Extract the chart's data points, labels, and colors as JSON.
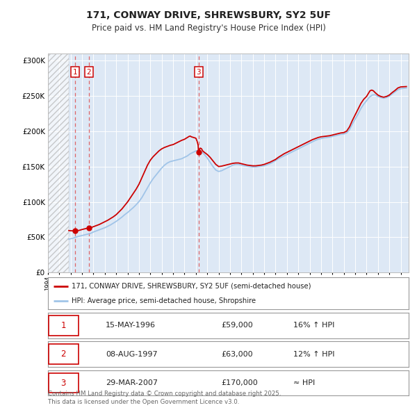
{
  "title": "171, CONWAY DRIVE, SHREWSBURY, SY2 5UF",
  "subtitle": "Price paid vs. HM Land Registry's House Price Index (HPI)",
  "legend_entry1": "171, CONWAY DRIVE, SHREWSBURY, SY2 5UF (semi-detached house)",
  "legend_entry2": "HPI: Average price, semi-detached house, Shropshire",
  "footer": "Contains HM Land Registry data © Crown copyright and database right 2025.\nThis data is licensed under the Open Government Licence v3.0.",
  "sale_color": "#cc0000",
  "hpi_color": "#a0c4e8",
  "bg_color": "#ffffff",
  "plot_bg_color": "#dde8f5",
  "ylim": [
    0,
    310000
  ],
  "xlim_start": 1994.0,
  "xlim_end": 2025.7,
  "hatch_end": 1995.83,
  "sales": [
    {
      "num": 1,
      "date_dec": 1996.37,
      "price": 59000,
      "label": "15-MAY-1996",
      "pct": "16% ↑ HPI"
    },
    {
      "num": 2,
      "date_dec": 1997.6,
      "price": 63000,
      "label": "08-AUG-1997",
      "pct": "12% ↑ HPI"
    },
    {
      "num": 3,
      "date_dec": 2007.24,
      "price": 170000,
      "label": "29-MAR-2007",
      "pct": "≈ HPI"
    }
  ],
  "hpi_data": [
    [
      1995.83,
      47200
    ],
    [
      1996.0,
      48000
    ],
    [
      1996.25,
      49000
    ],
    [
      1996.5,
      50500
    ],
    [
      1996.75,
      51500
    ],
    [
      1997.0,
      52500
    ],
    [
      1997.25,
      53500
    ],
    [
      1997.5,
      54500
    ],
    [
      1997.75,
      55500
    ],
    [
      1998.0,
      57500
    ],
    [
      1998.25,
      59000
    ],
    [
      1998.5,
      60500
    ],
    [
      1998.75,
      62000
    ],
    [
      1999.0,
      63500
    ],
    [
      1999.25,
      65500
    ],
    [
      1999.5,
      67500
    ],
    [
      1999.75,
      70000
    ],
    [
      2000.0,
      72500
    ],
    [
      2000.25,
      75500
    ],
    [
      2000.5,
      78500
    ],
    [
      2000.75,
      82000
    ],
    [
      2001.0,
      85000
    ],
    [
      2001.25,
      88500
    ],
    [
      2001.5,
      92000
    ],
    [
      2001.75,
      96000
    ],
    [
      2002.0,
      100500
    ],
    [
      2002.25,
      106000
    ],
    [
      2002.5,
      113000
    ],
    [
      2002.75,
      120000
    ],
    [
      2003.0,
      127000
    ],
    [
      2003.25,
      133000
    ],
    [
      2003.5,
      138000
    ],
    [
      2003.75,
      143000
    ],
    [
      2004.0,
      148000
    ],
    [
      2004.25,
      152000
    ],
    [
      2004.5,
      155000
    ],
    [
      2004.75,
      157000
    ],
    [
      2005.0,
      158000
    ],
    [
      2005.25,
      159000
    ],
    [
      2005.5,
      160000
    ],
    [
      2005.75,
      161000
    ],
    [
      2006.0,
      163000
    ],
    [
      2006.25,
      165000
    ],
    [
      2006.5,
      168000
    ],
    [
      2006.75,
      170000
    ],
    [
      2007.0,
      172000
    ],
    [
      2007.25,
      173000
    ],
    [
      2007.5,
      171000
    ],
    [
      2007.75,
      167000
    ],
    [
      2008.0,
      162000
    ],
    [
      2008.25,
      156000
    ],
    [
      2008.5,
      150000
    ],
    [
      2008.75,
      145000
    ],
    [
      2009.0,
      143000
    ],
    [
      2009.25,
      144000
    ],
    [
      2009.5,
      146000
    ],
    [
      2009.75,
      148000
    ],
    [
      2010.0,
      150000
    ],
    [
      2010.25,
      152000
    ],
    [
      2010.5,
      153000
    ],
    [
      2010.75,
      153000
    ],
    [
      2011.0,
      152000
    ],
    [
      2011.25,
      151000
    ],
    [
      2011.5,
      150500
    ],
    [
      2011.75,
      150000
    ],
    [
      2012.0,
      149500
    ],
    [
      2012.25,
      149500
    ],
    [
      2012.5,
      150000
    ],
    [
      2012.75,
      150500
    ],
    [
      2013.0,
      151000
    ],
    [
      2013.25,
      152500
    ],
    [
      2013.5,
      154000
    ],
    [
      2013.75,
      156000
    ],
    [
      2014.0,
      158500
    ],
    [
      2014.25,
      161000
    ],
    [
      2014.5,
      163000
    ],
    [
      2014.75,
      165000
    ],
    [
      2015.0,
      167000
    ],
    [
      2015.25,
      169000
    ],
    [
      2015.5,
      171000
    ],
    [
      2015.75,
      173000
    ],
    [
      2016.0,
      175000
    ],
    [
      2016.25,
      177000
    ],
    [
      2016.5,
      179000
    ],
    [
      2016.75,
      181000
    ],
    [
      2017.0,
      183000
    ],
    [
      2017.25,
      185000
    ],
    [
      2017.5,
      187000
    ],
    [
      2017.75,
      188500
    ],
    [
      2018.0,
      189500
    ],
    [
      2018.25,
      190500
    ],
    [
      2018.5,
      191000
    ],
    [
      2018.75,
      191500
    ],
    [
      2019.0,
      192500
    ],
    [
      2019.25,
      193500
    ],
    [
      2019.5,
      194500
    ],
    [
      2019.75,
      195500
    ],
    [
      2020.0,
      196000
    ],
    [
      2020.25,
      197500
    ],
    [
      2020.5,
      202000
    ],
    [
      2020.75,
      210000
    ],
    [
      2021.0,
      217000
    ],
    [
      2021.25,
      224000
    ],
    [
      2021.5,
      232000
    ],
    [
      2021.75,
      238000
    ],
    [
      2022.0,
      243000
    ],
    [
      2022.25,
      248000
    ],
    [
      2022.5,
      251000
    ],
    [
      2022.75,
      251500
    ],
    [
      2023.0,
      249000
    ],
    [
      2023.25,
      247500
    ],
    [
      2023.5,
      246500
    ],
    [
      2023.75,
      247500
    ],
    [
      2024.0,
      249500
    ],
    [
      2024.25,
      252500
    ],
    [
      2024.5,
      255500
    ],
    [
      2024.75,
      258500
    ],
    [
      2025.0,
      260000
    ],
    [
      2025.5,
      261000
    ]
  ],
  "property_data": [
    [
      1995.83,
      59500
    ],
    [
      1996.0,
      59200
    ],
    [
      1996.25,
      59100
    ],
    [
      1996.37,
      59000
    ],
    [
      1996.5,
      59200
    ],
    [
      1996.75,
      59800
    ],
    [
      1997.0,
      61000
    ],
    [
      1997.25,
      62000
    ],
    [
      1997.5,
      63000
    ],
    [
      1997.6,
      63000
    ],
    [
      1997.75,
      63500
    ],
    [
      1998.0,
      65000
    ],
    [
      1998.25,
      66500
    ],
    [
      1998.5,
      68000
    ],
    [
      1998.75,
      70000
    ],
    [
      1999.0,
      72000
    ],
    [
      1999.25,
      74000
    ],
    [
      1999.5,
      76500
    ],
    [
      1999.75,
      79000
    ],
    [
      2000.0,
      82000
    ],
    [
      2000.25,
      86000
    ],
    [
      2000.5,
      90000
    ],
    [
      2000.75,
      95000
    ],
    [
      2001.0,
      100000
    ],
    [
      2001.25,
      106000
    ],
    [
      2001.5,
      112000
    ],
    [
      2001.75,
      118000
    ],
    [
      2002.0,
      125000
    ],
    [
      2002.25,
      134000
    ],
    [
      2002.5,
      143000
    ],
    [
      2002.75,
      152000
    ],
    [
      2003.0,
      159000
    ],
    [
      2003.25,
      164000
    ],
    [
      2003.5,
      168000
    ],
    [
      2003.75,
      172000
    ],
    [
      2004.0,
      175000
    ],
    [
      2004.25,
      177000
    ],
    [
      2004.5,
      178500
    ],
    [
      2004.75,
      180000
    ],
    [
      2005.0,
      181000
    ],
    [
      2005.25,
      183000
    ],
    [
      2005.5,
      185000
    ],
    [
      2005.75,
      187000
    ],
    [
      2006.0,
      188500
    ],
    [
      2006.1,
      189500
    ],
    [
      2006.2,
      190500
    ],
    [
      2006.3,
      191500
    ],
    [
      2006.4,
      192500
    ],
    [
      2006.5,
      193000
    ],
    [
      2006.6,
      192000
    ],
    [
      2006.7,
      191500
    ],
    [
      2006.8,
      191000
    ],
    [
      2006.9,
      190500
    ],
    [
      2007.0,
      190000
    ],
    [
      2007.1,
      186000
    ],
    [
      2007.2,
      180000
    ],
    [
      2007.24,
      170000
    ],
    [
      2007.3,
      174000
    ],
    [
      2007.4,
      176000
    ],
    [
      2007.5,
      175000
    ],
    [
      2007.6,
      172000
    ],
    [
      2007.75,
      170000
    ],
    [
      2008.0,
      167000
    ],
    [
      2008.25,
      163000
    ],
    [
      2008.5,
      158000
    ],
    [
      2008.75,
      153000
    ],
    [
      2009.0,
      150000
    ],
    [
      2009.25,
      150500
    ],
    [
      2009.5,
      151500
    ],
    [
      2009.75,
      152500
    ],
    [
      2010.0,
      153500
    ],
    [
      2010.25,
      154500
    ],
    [
      2010.5,
      155000
    ],
    [
      2010.75,
      155000
    ],
    [
      2011.0,
      154000
    ],
    [
      2011.25,
      153000
    ],
    [
      2011.5,
      152000
    ],
    [
      2011.75,
      151500
    ],
    [
      2012.0,
      151000
    ],
    [
      2012.25,
      151000
    ],
    [
      2012.5,
      151500
    ],
    [
      2012.75,
      152000
    ],
    [
      2013.0,
      153000
    ],
    [
      2013.25,
      154500
    ],
    [
      2013.5,
      156000
    ],
    [
      2013.75,
      158000
    ],
    [
      2014.0,
      160000
    ],
    [
      2014.25,
      163000
    ],
    [
      2014.5,
      165500
    ],
    [
      2014.75,
      168000
    ],
    [
      2015.0,
      170000
    ],
    [
      2015.25,
      172000
    ],
    [
      2015.5,
      174000
    ],
    [
      2015.75,
      176000
    ],
    [
      2016.0,
      178000
    ],
    [
      2016.25,
      180000
    ],
    [
      2016.5,
      182000
    ],
    [
      2016.75,
      184000
    ],
    [
      2017.0,
      186000
    ],
    [
      2017.25,
      188000
    ],
    [
      2017.5,
      189500
    ],
    [
      2017.75,
      191000
    ],
    [
      2018.0,
      192000
    ],
    [
      2018.25,
      192500
    ],
    [
      2018.5,
      193000
    ],
    [
      2018.75,
      193500
    ],
    [
      2019.0,
      194500
    ],
    [
      2019.25,
      195500
    ],
    [
      2019.5,
      196500
    ],
    [
      2019.75,
      197500
    ],
    [
      2020.0,
      198000
    ],
    [
      2020.25,
      200000
    ],
    [
      2020.5,
      206000
    ],
    [
      2020.75,
      215000
    ],
    [
      2021.0,
      223000
    ],
    [
      2021.25,
      231000
    ],
    [
      2021.5,
      239000
    ],
    [
      2021.75,
      245000
    ],
    [
      2022.0,
      249000
    ],
    [
      2022.15,
      253000
    ],
    [
      2022.3,
      257000
    ],
    [
      2022.45,
      258000
    ],
    [
      2022.6,
      257000
    ],
    [
      2022.75,
      254500
    ],
    [
      2023.0,
      251000
    ],
    [
      2023.25,
      249000
    ],
    [
      2023.5,
      248000
    ],
    [
      2023.75,
      249000
    ],
    [
      2024.0,
      251000
    ],
    [
      2024.25,
      254500
    ],
    [
      2024.5,
      257500
    ],
    [
      2024.75,
      261000
    ],
    [
      2025.0,
      262500
    ],
    [
      2025.5,
      263000
    ]
  ]
}
